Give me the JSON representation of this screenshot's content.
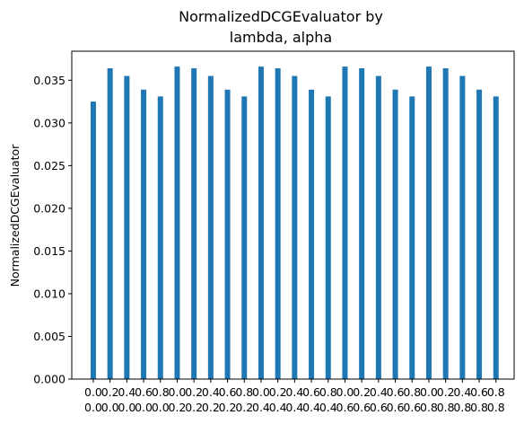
{
  "chart_data": {
    "type": "bar",
    "title_lines": [
      "NormalizedDCGEvaluator by",
      "lambda, alpha"
    ],
    "xlabel": "",
    "ylabel": "NormalizedDCGEvaluator",
    "ylim": [
      0,
      0.0384
    ],
    "yticks": [
      "0.000",
      "0.005",
      "0.010",
      "0.015",
      "0.020",
      "0.025",
      "0.030",
      "0.035"
    ],
    "grid": false,
    "colors": {
      "bar": "#1f77b4",
      "axis": "#000000",
      "background": "#ffffff"
    },
    "categories": [
      {
        "lambda": "0.0",
        "alpha": "0.0"
      },
      {
        "lambda": "0.2",
        "alpha": "0.0"
      },
      {
        "lambda": "0.4",
        "alpha": "0.0"
      },
      {
        "lambda": "0.6",
        "alpha": "0.0"
      },
      {
        "lambda": "0.8",
        "alpha": "0.0"
      },
      {
        "lambda": "0.0",
        "alpha": "0.2"
      },
      {
        "lambda": "0.2",
        "alpha": "0.2"
      },
      {
        "lambda": "0.4",
        "alpha": "0.2"
      },
      {
        "lambda": "0.6",
        "alpha": "0.2"
      },
      {
        "lambda": "0.8",
        "alpha": "0.2"
      },
      {
        "lambda": "0.0",
        "alpha": "0.4"
      },
      {
        "lambda": "0.2",
        "alpha": "0.4"
      },
      {
        "lambda": "0.4",
        "alpha": "0.4"
      },
      {
        "lambda": "0.6",
        "alpha": "0.4"
      },
      {
        "lambda": "0.8",
        "alpha": "0.4"
      },
      {
        "lambda": "0.0",
        "alpha": "0.6"
      },
      {
        "lambda": "0.2",
        "alpha": "0.6"
      },
      {
        "lambda": "0.4",
        "alpha": "0.6"
      },
      {
        "lambda": "0.6",
        "alpha": "0.6"
      },
      {
        "lambda": "0.8",
        "alpha": "0.6"
      },
      {
        "lambda": "0.0",
        "alpha": "0.8"
      },
      {
        "lambda": "0.2",
        "alpha": "0.8"
      },
      {
        "lambda": "0.4",
        "alpha": "0.8"
      },
      {
        "lambda": "0.6",
        "alpha": "0.8"
      },
      {
        "lambda": "0.8",
        "alpha": "0.8"
      }
    ],
    "values": [
      0.0325,
      0.0364,
      0.0355,
      0.0339,
      0.0331,
      0.0366,
      0.0364,
      0.0355,
      0.0339,
      0.0331,
      0.0366,
      0.0364,
      0.0355,
      0.0339,
      0.0331,
      0.0366,
      0.0364,
      0.0355,
      0.0339,
      0.0331,
      0.0366,
      0.0364,
      0.0355,
      0.0339,
      0.0331
    ]
  }
}
